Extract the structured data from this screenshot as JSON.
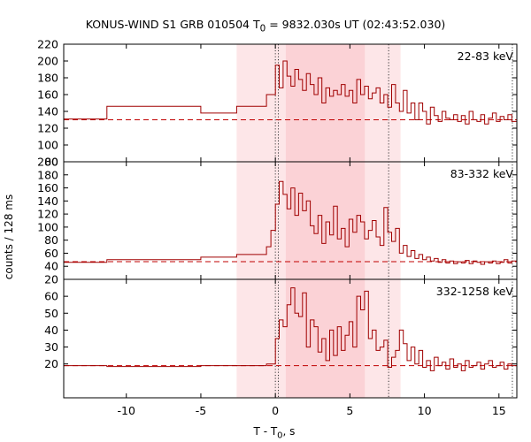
{
  "title": "KONUS-WIND S1 GRB 010504 T",
  "title_sub": "0",
  "title_rest": " = 9832.030s UT (02:43:52.030)",
  "ylabel": "counts / 128 ms",
  "xlabel": "T - T",
  "xlabel_sub": "0",
  "xlabel_rest": ", s",
  "colors": {
    "curve": "#a00000",
    "background_level": "#c00000",
    "shade_outer": "#fde6e8",
    "shade_inner": "#fbd2d6",
    "frame": "#000000"
  },
  "chart_data": {
    "type": "line",
    "xlim": [
      -14.2,
      16.2
    ],
    "xticks": [
      -10,
      -5,
      0,
      5,
      10,
      15
    ],
    "shaded_intervals": [
      {
        "x": [
          -2.6,
          8.4
        ],
        "level": "outer"
      },
      {
        "x": [
          0.7,
          6.0
        ],
        "level": "inner"
      }
    ],
    "vertical_markers": [
      0.0,
      0.2,
      7.6,
      15.9
    ],
    "panels": [
      {
        "name": "22-83 keV",
        "ylim": [
          80,
          220
        ],
        "yticks": [
          80,
          100,
          120,
          140,
          160,
          180,
          200,
          220
        ],
        "background": 130,
        "x": [
          -14.2,
          -11.3,
          -5.0,
          -2.6,
          -0.6,
          0.0,
          0.26,
          0.52,
          0.78,
          1.04,
          1.3,
          1.56,
          1.82,
          2.08,
          2.34,
          2.6,
          2.86,
          3.12,
          3.38,
          3.64,
          3.9,
          4.16,
          4.42,
          4.68,
          4.94,
          5.2,
          5.46,
          5.72,
          5.98,
          6.24,
          6.5,
          6.76,
          7.02,
          7.28,
          7.54,
          7.8,
          8.06,
          8.32,
          8.58,
          8.84,
          9.1,
          9.36,
          9.62,
          9.88,
          10.14,
          10.4,
          10.66,
          10.92,
          11.18,
          11.44,
          11.7,
          11.96,
          12.22,
          12.48,
          12.74,
          13.0,
          13.26,
          13.52,
          13.78,
          14.04,
          14.3,
          14.56,
          14.82,
          15.08,
          15.34,
          15.6,
          15.86,
          16.2
        ],
        "y": [
          131,
          146,
          138,
          146,
          160,
          195,
          168,
          200,
          182,
          170,
          190,
          178,
          165,
          185,
          172,
          160,
          180,
          150,
          168,
          158,
          165,
          160,
          172,
          158,
          165,
          150,
          178,
          160,
          170,
          155,
          162,
          168,
          150,
          160,
          145,
          172,
          150,
          140,
          165,
          138,
          150,
          130,
          150,
          140,
          125,
          145,
          135,
          128,
          140,
          132,
          130,
          136,
          128,
          135,
          125,
          140,
          130,
          128,
          136,
          125,
          132,
          138,
          128,
          134,
          130,
          136,
          128,
          128
        ]
      },
      {
        "name": "83-332 keV",
        "ylim": [
          20,
          200
        ],
        "yticks": [
          20,
          40,
          60,
          80,
          100,
          120,
          140,
          160,
          180,
          200
        ],
        "background": 47,
        "x": [
          -14.2,
          -11.3,
          -5.0,
          -2.6,
          -0.6,
          -0.3,
          0.0,
          0.26,
          0.52,
          0.78,
          1.04,
          1.3,
          1.56,
          1.82,
          2.08,
          2.34,
          2.6,
          2.86,
          3.12,
          3.38,
          3.64,
          3.9,
          4.16,
          4.42,
          4.68,
          4.94,
          5.2,
          5.46,
          5.72,
          5.98,
          6.24,
          6.5,
          6.76,
          7.02,
          7.28,
          7.54,
          7.8,
          8.06,
          8.32,
          8.58,
          8.84,
          9.1,
          9.36,
          9.62,
          9.88,
          10.14,
          10.4,
          10.66,
          10.92,
          11.18,
          11.44,
          11.7,
          11.96,
          12.22,
          12.48,
          12.74,
          13.0,
          13.26,
          13.52,
          13.78,
          14.04,
          14.3,
          14.56,
          14.82,
          15.08,
          15.34,
          15.6,
          15.86,
          16.2
        ],
        "y": [
          46,
          50,
          54,
          58,
          70,
          95,
          135,
          170,
          150,
          128,
          160,
          118,
          152,
          125,
          140,
          102,
          90,
          118,
          75,
          108,
          88,
          132,
          82,
          98,
          70,
          112,
          92,
          118,
          108,
          82,
          95,
          110,
          85,
          72,
          130,
          92,
          78,
          98,
          60,
          72,
          55,
          64,
          52,
          58,
          50,
          54,
          48,
          52,
          46,
          50,
          45,
          48,
          44,
          47,
          45,
          49,
          44,
          48,
          46,
          43,
          47,
          45,
          48,
          44,
          46,
          50,
          45,
          48,
          46
        ]
      },
      {
        "name": "332-1258 keV",
        "ylim": [
          0,
          70
        ],
        "yticks": [
          20,
          30,
          40,
          50,
          60
        ],
        "background": 19,
        "x": [
          -14.2,
          -11.3,
          -5.0,
          -2.6,
          -0.6,
          0.0,
          0.26,
          0.52,
          0.78,
          1.04,
          1.3,
          1.56,
          1.82,
          2.08,
          2.34,
          2.6,
          2.86,
          3.12,
          3.38,
          3.64,
          3.9,
          4.16,
          4.42,
          4.68,
          4.94,
          5.2,
          5.46,
          5.72,
          5.98,
          6.24,
          6.5,
          6.76,
          7.02,
          7.28,
          7.54,
          7.8,
          8.06,
          8.32,
          8.58,
          8.84,
          9.1,
          9.36,
          9.62,
          9.88,
          10.14,
          10.4,
          10.66,
          10.92,
          11.18,
          11.44,
          11.7,
          11.96,
          12.22,
          12.48,
          12.74,
          13.0,
          13.26,
          13.52,
          13.78,
          14.04,
          14.3,
          14.56,
          14.82,
          15.08,
          15.34,
          15.6,
          15.86,
          16.2
        ],
        "y": [
          19,
          18.5,
          19,
          19,
          20,
          35,
          46,
          42,
          55,
          65,
          50,
          48,
          62,
          30,
          46,
          42,
          27,
          35,
          22,
          40,
          25,
          42,
          28,
          37,
          45,
          30,
          60,
          52,
          63,
          35,
          40,
          28,
          30,
          34,
          18,
          24,
          28,
          40,
          32,
          22,
          30,
          20,
          28,
          18,
          22,
          16,
          24,
          19,
          21,
          17,
          23,
          18,
          20,
          16,
          22,
          18,
          19,
          21,
          17,
          20,
          22,
          18,
          19,
          21,
          17,
          20,
          19,
          22
        ]
      }
    ]
  }
}
